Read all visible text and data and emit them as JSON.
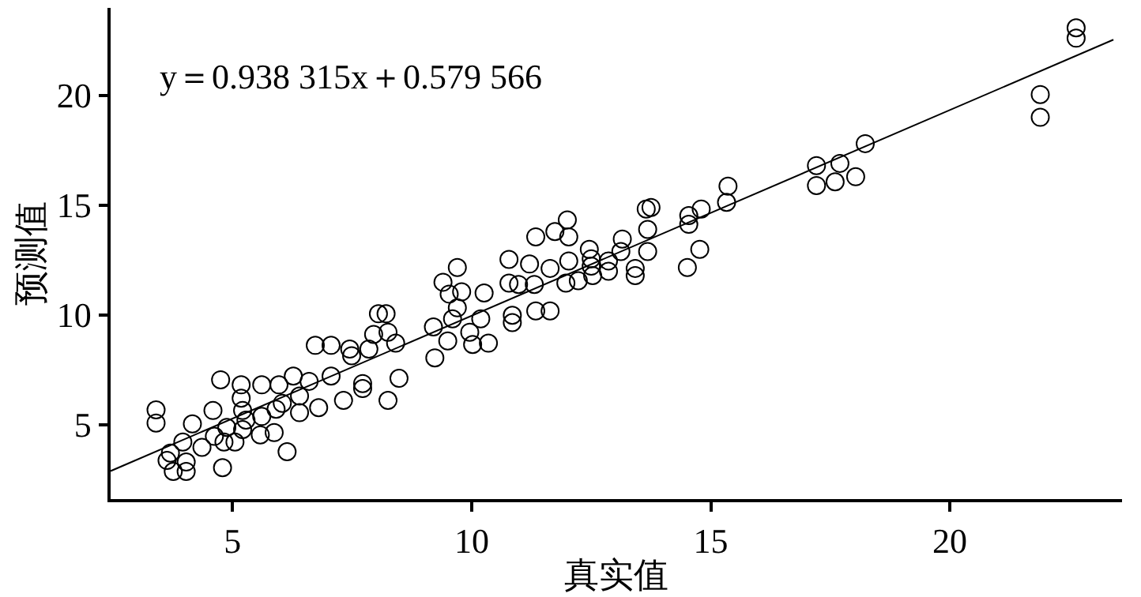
{
  "chart_data": {
    "type": "scatter",
    "xlabel": "真实值",
    "ylabel": "预测值",
    "annotations": [
      "y＝0.938 315x＋0.579 566"
    ],
    "xlim": [
      2.45,
      23.6
    ],
    "ylim": [
      1.6,
      24
    ],
    "xticks": [
      5,
      10,
      15,
      20
    ],
    "yticks": [
      5,
      10,
      15,
      20
    ],
    "grid": false,
    "marker": "circle",
    "series": [
      {
        "color": "#000000",
        "x": [
          3.4,
          3.4,
          3.7,
          3.63,
          3.76,
          4.03,
          4.03,
          3.96,
          4.16,
          4.36,
          4.59,
          4.62,
          4.75,
          4.79,
          4.82,
          4.88,
          5.05,
          5.18,
          5.18,
          5.21,
          5.21,
          5.28,
          5.58,
          5.61,
          5.61,
          5.87,
          5.91,
          5.97,
          6.04,
          6.14,
          6.27,
          6.4,
          6.4,
          6.6,
          6.8,
          6.73,
          7.06,
          7.06,
          7.32,
          7.45,
          7.49,
          7.72,
          7.72,
          7.85,
          7.95,
          8.05,
          8.21,
          8.25,
          8.25,
          8.41,
          8.48,
          9.2,
          9.23,
          9.4,
          9.5,
          9.53,
          9.6,
          9.7,
          9.7,
          9.79,
          9.96,
          10.02,
          10.19,
          10.26,
          10.35,
          10.78,
          10.78,
          10.85,
          10.85,
          10.98,
          11.21,
          11.31,
          11.34,
          11.34,
          11.64,
          11.64,
          11.74,
          11.97,
          12.0,
          12.03,
          12.03,
          12.23,
          12.46,
          12.5,
          12.5,
          12.53,
          12.86,
          12.86,
          13.12,
          13.15,
          13.42,
          13.42,
          13.68,
          13.68,
          13.65,
          13.75,
          14.51,
          14.54,
          14.54,
          14.77,
          14.8,
          15.33,
          15.36,
          17.21,
          17.21,
          17.6,
          17.7,
          18.03,
          18.23,
          21.89,
          21.89,
          22.64,
          22.64
        ],
        "values": [
          5.67,
          5.07,
          3.7,
          3.36,
          2.86,
          2.86,
          3.29,
          4.2,
          5.03,
          3.96,
          5.64,
          4.46,
          7.04,
          3.03,
          4.2,
          4.87,
          4.2,
          6.81,
          6.2,
          5.64,
          4.77,
          5.2,
          4.53,
          6.81,
          5.37,
          4.63,
          5.7,
          6.81,
          5.97,
          3.76,
          7.21,
          6.3,
          5.54,
          6.97,
          5.77,
          8.61,
          8.61,
          7.21,
          6.1,
          8.44,
          8.14,
          6.87,
          6.64,
          8.44,
          9.11,
          10.05,
          10.05,
          6.1,
          9.21,
          8.71,
          7.11,
          9.45,
          8.04,
          11.49,
          8.81,
          10.95,
          9.82,
          12.16,
          10.32,
          11.05,
          9.21,
          8.65,
          9.82,
          11.0,
          8.71,
          12.53,
          11.45,
          9.65,
          9.98,
          11.39,
          12.32,
          11.39,
          13.56,
          10.18,
          10.18,
          12.12,
          13.8,
          11.45,
          14.33,
          12.46,
          13.56,
          11.56,
          12.99,
          12.56,
          12.22,
          11.79,
          11.99,
          12.46,
          12.89,
          13.46,
          11.79,
          12.12,
          12.89,
          13.9,
          14.83,
          14.9,
          12.16,
          14.13,
          14.53,
          12.99,
          14.83,
          15.13,
          15.87,
          16.81,
          15.9,
          16.07,
          16.91,
          16.3,
          17.81,
          20.05,
          19.01,
          23.09,
          22.62
        ]
      },
      {
        "type": "line",
        "color": "#000000",
        "marker": "none",
        "x": [
          2.45,
          23.42
        ],
        "values": [
          2.88,
          22.55
        ]
      }
    ]
  }
}
